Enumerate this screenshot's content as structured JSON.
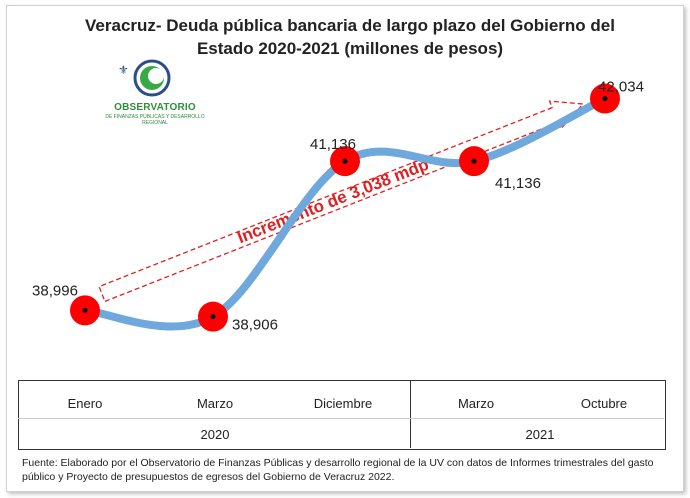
{
  "title": "Veracruz- Deuda pública bancaria de largo plazo del Gobierno del Estado 2020-2021 (millones de pesos)",
  "logo": {
    "name": "OBSERVATORIO",
    "subtitle": "DE FINANZAS PÚBLICAS Y DESARROLLO REGIONAL"
  },
  "annotation": "Incremento de 3,038 mdp",
  "source": "Fuente: Elaborado por el Observatorio de Finanzas Públicas y desarrollo regional de la UV con datos de Informes trimestrales del gasto público  y Proyecto de presupuestos de egresos del Gobierno de Veracruz 2022.",
  "colors": {
    "line": "#6fa8dc",
    "marker": "#ff0000",
    "annotation": "#e02020"
  },
  "chart_data": {
    "type": "line",
    "title": "Veracruz- Deuda pública bancaria de largo plazo del Gobierno del Estado 2020-2021 (millones de pesos)",
    "categories": [
      "Enero",
      "Marzo",
      "Diciembre",
      "Marzo",
      "Octubre"
    ],
    "years": [
      {
        "label": "2020",
        "span": [
          "Enero",
          "Marzo",
          "Diciembre"
        ]
      },
      {
        "label": "2021",
        "span": [
          "Marzo",
          "Octubre"
        ]
      }
    ],
    "values": [
      38996,
      38906,
      41136,
      41136,
      42034
    ],
    "data_labels": [
      "38,996",
      "38,906",
      "41,136",
      "41,136",
      "42,034"
    ],
    "grid": false,
    "legend": "none"
  }
}
